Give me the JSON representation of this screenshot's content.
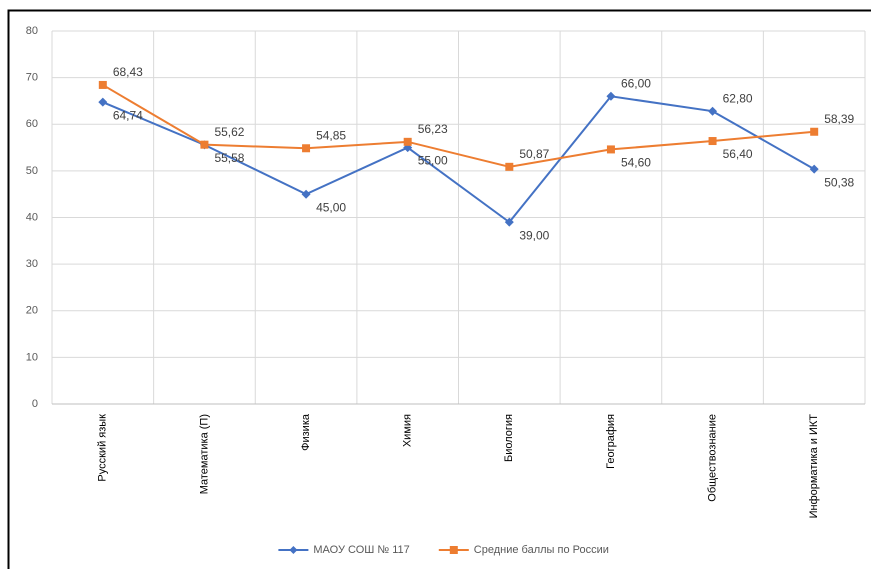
{
  "chart_data": {
    "type": "line",
    "categories": [
      "Русский язык",
      "Математика (П)",
      "Физика",
      "Химия",
      "Биология",
      "География",
      "Обществознание",
      "Информатика и ИКТ"
    ],
    "series": [
      {
        "name": "МАОУ СОШ № 117",
        "color": "#4472c4",
        "marker": "diamond",
        "values": [
          64.74,
          55.58,
          45.0,
          55.0,
          39.0,
          66.0,
          62.8,
          50.38
        ],
        "value_labels": [
          "64,74",
          "55,58",
          "45,00",
          "55,00",
          "39,00",
          "66,00",
          "62,80",
          "50,38"
        ]
      },
      {
        "name": "Средние баллы по России",
        "color": "#ed7d31",
        "marker": "square",
        "values": [
          68.43,
          55.62,
          54.85,
          56.23,
          50.87,
          54.6,
          56.4,
          58.39
        ],
        "value_labels": [
          "68,43",
          "55,62",
          "54,85",
          "56,23",
          "50,87",
          "54,60",
          "56,40",
          "58,39"
        ]
      }
    ],
    "ylim": [
      0,
      80
    ],
    "yticks": [
      0,
      10,
      20,
      30,
      40,
      50,
      60,
      70,
      80
    ],
    "grid": true,
    "legend": "bottom"
  }
}
